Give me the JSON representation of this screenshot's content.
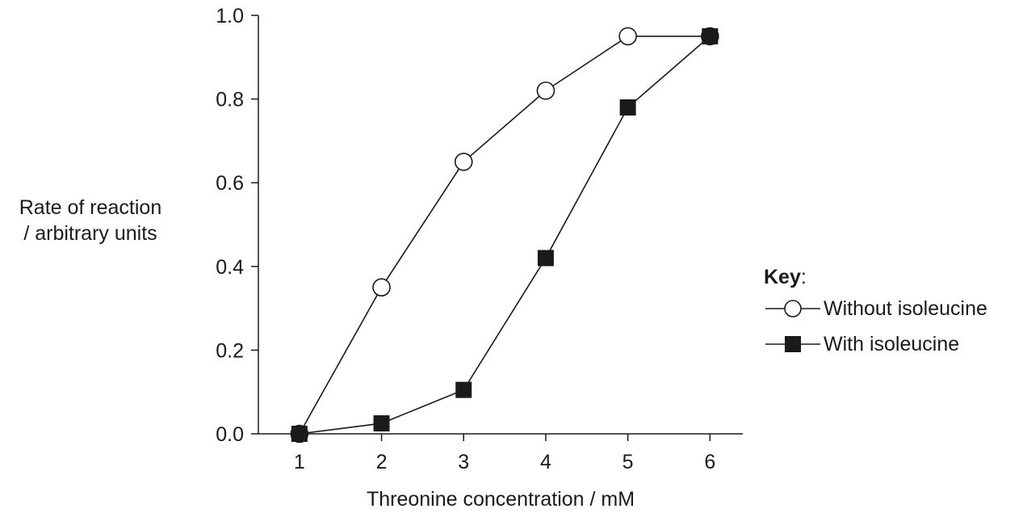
{
  "chart_data": {
    "type": "line",
    "xlabel": "Threonine concentration / mM",
    "ylabel_lines": [
      "Rate of reaction",
      "/ arbitrary units"
    ],
    "x": [
      1,
      2,
      3,
      4,
      5,
      6
    ],
    "xlim": [
      0.5,
      6.4
    ],
    "ylim": [
      0,
      1.0
    ],
    "x_ticks": [
      "1",
      "2",
      "3",
      "4",
      "5",
      "6"
    ],
    "y_ticks": [
      "0.0",
      "0.2",
      "0.4",
      "0.6",
      "0.8",
      "1.0"
    ],
    "series": [
      {
        "name": "Without isoleucine",
        "marker": "open-circle",
        "values": [
          0.0,
          0.35,
          0.65,
          0.82,
          0.95,
          0.95
        ]
      },
      {
        "name": "With isoleucine",
        "marker": "filled-square",
        "values": [
          0.0,
          0.025,
          0.105,
          0.42,
          0.78,
          0.95
        ]
      }
    ],
    "grid": false,
    "legend": {
      "title": "Key",
      "title_suffix": ":",
      "placement": "right"
    },
    "colors": {
      "line": "#1a1a1a",
      "marker_fill": "#1a1a1a",
      "open_fill": "#ffffff"
    }
  }
}
